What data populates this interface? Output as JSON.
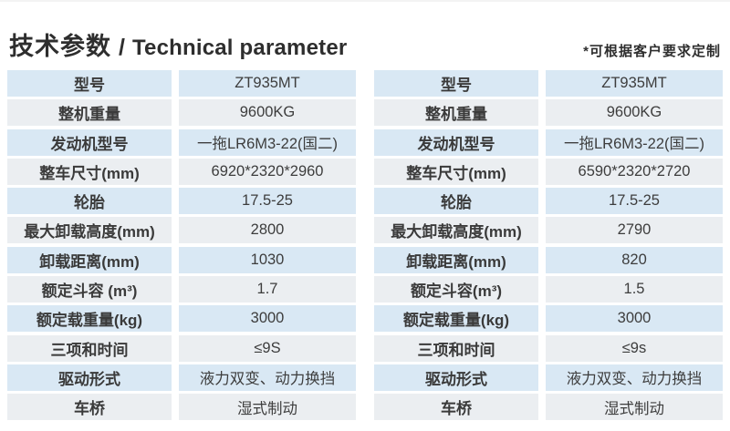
{
  "header": {
    "title_zh": "技术参数",
    "title_sep": "/",
    "title_en": "Technical parameter",
    "note": "*可根据客户要求定制"
  },
  "colors": {
    "row_blue": "#d9e8f4",
    "row_grey": "#ebeef1",
    "text_dark": "#2e2e2e"
  },
  "tables": [
    {
      "id": "left",
      "rows": [
        {
          "label": "型号",
          "value": "ZT935MT"
        },
        {
          "label": "整机重量",
          "value": "9600KG"
        },
        {
          "label": "发动机型号",
          "value": "一拖LR6M3-22(国二)"
        },
        {
          "label": "整车尺寸(mm)",
          "value": "6920*2320*2960"
        },
        {
          "label": "轮胎",
          "value": "17.5-25"
        },
        {
          "label": "最大卸载高度(mm)",
          "value": "2800"
        },
        {
          "label": "卸载距离(mm)",
          "value": "1030"
        },
        {
          "label": "额定斗容 (m³)",
          "value": "1.7"
        },
        {
          "label": "额定载重量(kg)",
          "value": "3000"
        },
        {
          "label": "三项和时间",
          "value": "≤9S"
        },
        {
          "label": "驱动形式",
          "value": "液力双变、动力换挡"
        },
        {
          "label": "车桥",
          "value": "湿式制动"
        }
      ]
    },
    {
      "id": "right",
      "rows": [
        {
          "label": "型号",
          "value": "ZT935MT"
        },
        {
          "label": "整机重量",
          "value": "9600KG"
        },
        {
          "label": "发动机型号",
          "value": "一拖LR6M3-22(国二)"
        },
        {
          "label": "整车尺寸(mm)",
          "value": "6590*2320*2720"
        },
        {
          "label": "轮胎",
          "value": "17.5-25"
        },
        {
          "label": "最大卸载高度(mm)",
          "value": "2790"
        },
        {
          "label": "卸载距离(mm)",
          "value": "820"
        },
        {
          "label": "额定斗容(m³)",
          "value": "1.5"
        },
        {
          "label": "额定载重量(kg)",
          "value": "3000"
        },
        {
          "label": "三项和时间",
          "value": "≤9s"
        },
        {
          "label": "驱动形式",
          "value": "液力双变、动力换挡"
        },
        {
          "label": "车桥",
          "value": "湿式制动"
        }
      ]
    }
  ]
}
